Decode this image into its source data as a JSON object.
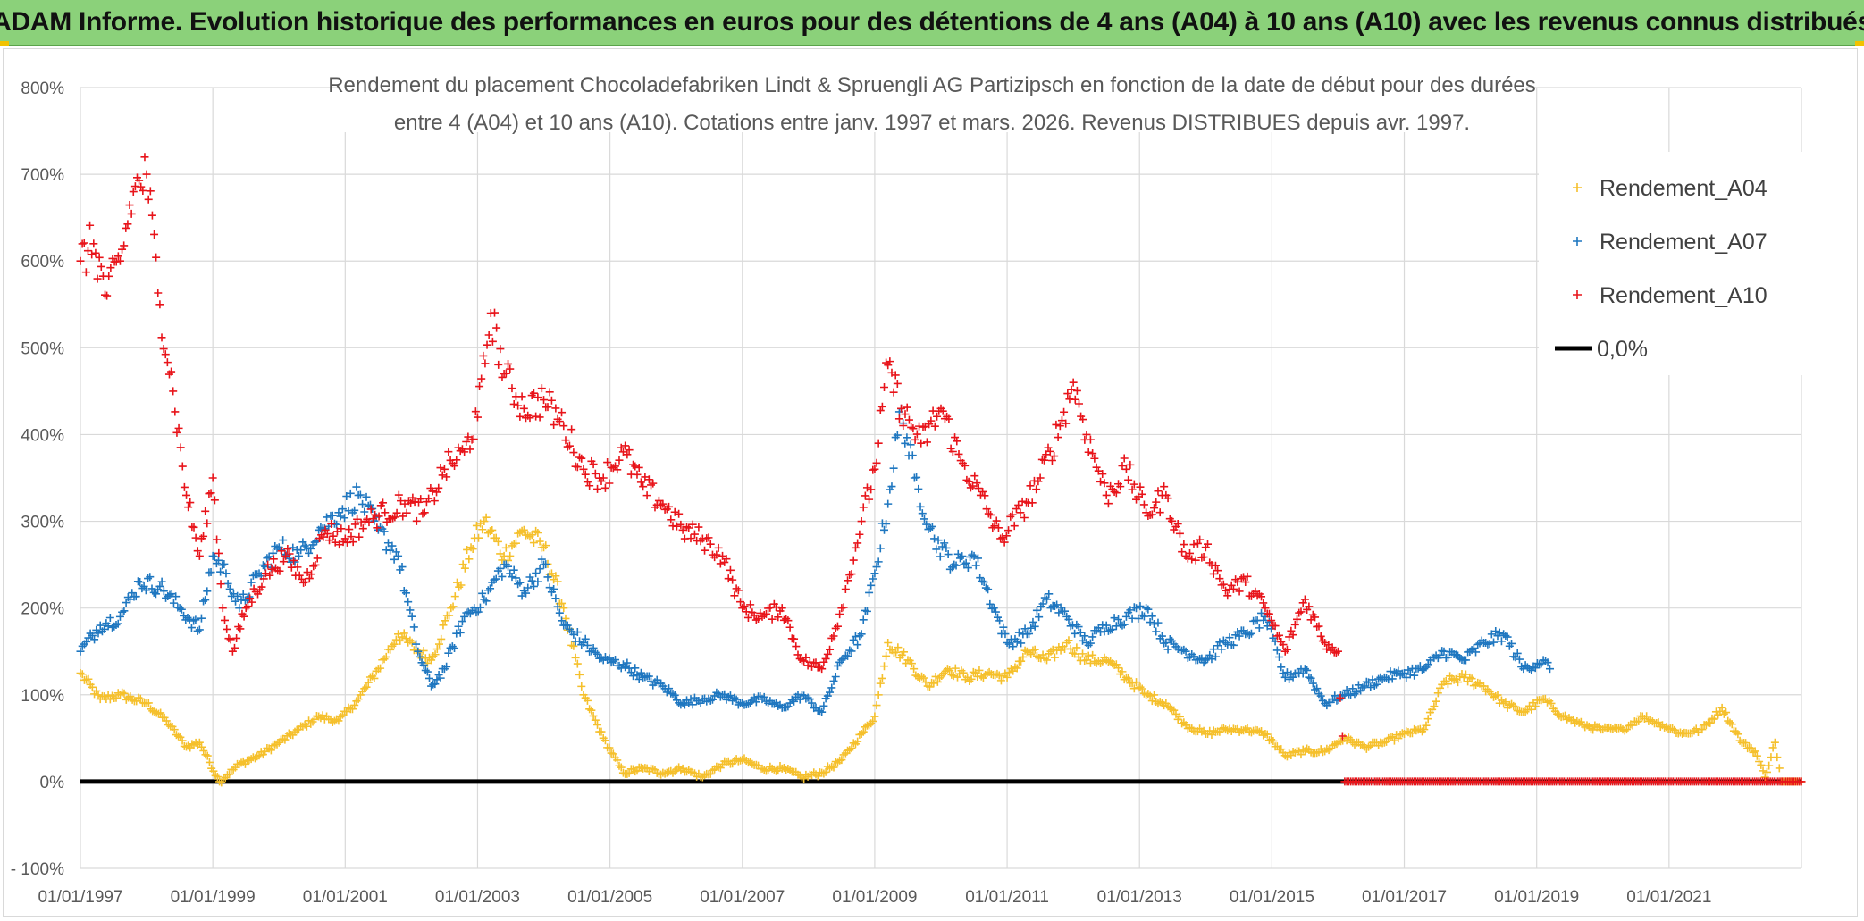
{
  "header": {
    "banner": "ADAM Informe. Evolution historique des performances en euros pour des détentions de 4 ans (A04) à 10 ans (A10) avec les revenus connus distribués"
  },
  "chart_data": {
    "type": "scatter",
    "title_line1": "Rendement du placement Chocoladefabriken Lindt & Spruengli AG Partizipsch en fonction de la date de début pour des durées",
    "title_line2": "entre 4 (A04) et 10 ans (A10). Cotations entre janv. 1997 et mars. 2026. Revenus DISTRIBUES depuis avr. 1997.",
    "xlabel": "",
    "ylabel": "",
    "xlim": [
      1997.0,
      2023.0
    ],
    "ylim": [
      -100,
      800
    ],
    "y_ticks": [
      -100,
      0,
      100,
      200,
      300,
      400,
      500,
      600,
      700,
      800
    ],
    "y_tick_labels": [
      "- 100%",
      "0%",
      "100%",
      "200%",
      "300%",
      "400%",
      "500%",
      "600%",
      "700%",
      "800%"
    ],
    "x_ticks": [
      1997,
      1999,
      2001,
      2003,
      2005,
      2007,
      2009,
      2011,
      2013,
      2015,
      2017,
      2019,
      2021
    ],
    "x_tick_labels": [
      "01/01/1997",
      "01/01/1999",
      "01/01/2001",
      "01/01/2003",
      "01/01/2005",
      "01/01/2007",
      "01/01/2009",
      "01/01/2011",
      "01/01/2013",
      "01/01/2015",
      "01/01/2017",
      "01/01/2019",
      "01/01/2021"
    ],
    "grid": true,
    "legend_position": "top-right",
    "series": [
      {
        "name": "Rendement_A04",
        "color": "#f5c02c",
        "marker": "+",
        "points": [
          [
            1997.0,
            125
          ],
          [
            1997.3,
            95
          ],
          [
            1997.6,
            100
          ],
          [
            1998.0,
            90
          ],
          [
            1998.3,
            70
          ],
          [
            1998.6,
            40
          ],
          [
            1998.8,
            45
          ],
          [
            1999.1,
            0
          ],
          [
            1999.4,
            20
          ],
          [
            1999.7,
            30
          ],
          [
            2000.0,
            45
          ],
          [
            2000.3,
            60
          ],
          [
            2000.6,
            75
          ],
          [
            2000.9,
            70
          ],
          [
            2001.2,
            95
          ],
          [
            2001.5,
            130
          ],
          [
            2001.8,
            170
          ],
          [
            2002.1,
            150
          ],
          [
            2002.3,
            140
          ],
          [
            2002.6,
            200
          ],
          [
            2002.9,
            270
          ],
          [
            2003.1,
            300
          ],
          [
            2003.4,
            260
          ],
          [
            2003.7,
            290
          ],
          [
            2004.0,
            270
          ],
          [
            2004.3,
            200
          ],
          [
            2004.6,
            100
          ],
          [
            2004.9,
            50
          ],
          [
            2005.2,
            10
          ],
          [
            2005.5,
            15
          ],
          [
            2005.8,
            10
          ],
          [
            2006.1,
            15
          ],
          [
            2006.4,
            5
          ],
          [
            2006.7,
            20
          ],
          [
            2007.0,
            25
          ],
          [
            2007.3,
            15
          ],
          [
            2007.6,
            15
          ],
          [
            2007.9,
            5
          ],
          [
            2008.2,
            10
          ],
          [
            2008.5,
            25
          ],
          [
            2008.8,
            55
          ],
          [
            2009.0,
            75
          ],
          [
            2009.2,
            160
          ],
          [
            2009.5,
            140
          ],
          [
            2009.8,
            110
          ],
          [
            2010.1,
            130
          ],
          [
            2010.4,
            120
          ],
          [
            2010.7,
            125
          ],
          [
            2011.0,
            120
          ],
          [
            2011.3,
            150
          ],
          [
            2011.6,
            140
          ],
          [
            2011.9,
            160
          ],
          [
            2012.2,
            140
          ],
          [
            2012.5,
            140
          ],
          [
            2012.8,
            120
          ],
          [
            2013.1,
            100
          ],
          [
            2013.4,
            90
          ],
          [
            2013.7,
            65
          ],
          [
            2014.0,
            55
          ],
          [
            2014.3,
            60
          ],
          [
            2014.6,
            60
          ],
          [
            2014.9,
            55
          ],
          [
            2015.2,
            30
          ],
          [
            2015.5,
            35
          ],
          [
            2015.8,
            35
          ],
          [
            2016.1,
            50
          ],
          [
            2016.4,
            40
          ],
          [
            2016.7,
            45
          ],
          [
            2017.0,
            55
          ],
          [
            2017.3,
            60
          ],
          [
            2017.6,
            115
          ],
          [
            2017.9,
            120
          ],
          [
            2018.2,
            110
          ],
          [
            2018.5,
            90
          ],
          [
            2018.8,
            80
          ],
          [
            2019.1,
            95
          ],
          [
            2019.4,
            75
          ],
          [
            2019.7,
            65
          ],
          [
            2020.0,
            60
          ],
          [
            2020.3,
            60
          ],
          [
            2020.6,
            75
          ],
          [
            2020.9,
            65
          ],
          [
            2021.2,
            55
          ],
          [
            2021.5,
            60
          ],
          [
            2021.8,
            85
          ],
          [
            2022.1,
            45
          ],
          [
            2022.3,
            35
          ],
          [
            2022.45,
            5
          ],
          [
            2022.6,
            45
          ],
          [
            2022.7,
            0
          ],
          [
            2022.9,
            0
          ],
          [
            2023.0,
            0
          ]
        ]
      },
      {
        "name": "Rendement_A07",
        "color": "#1f77c0",
        "marker": "+",
        "points": [
          [
            1997.0,
            150
          ],
          [
            1997.3,
            180
          ],
          [
            1997.6,
            190
          ],
          [
            1997.9,
            230
          ],
          [
            1998.2,
            225
          ],
          [
            1998.5,
            200
          ],
          [
            1998.8,
            175
          ],
          [
            1999.0,
            260
          ],
          [
            1999.2,
            240
          ],
          [
            1999.4,
            200
          ],
          [
            1999.7,
            240
          ],
          [
            2000.0,
            270
          ],
          [
            2000.3,
            260
          ],
          [
            2000.6,
            290
          ],
          [
            2000.9,
            310
          ],
          [
            2001.2,
            330
          ],
          [
            2001.5,
            290
          ],
          [
            2001.8,
            260
          ],
          [
            2002.1,
            150
          ],
          [
            2002.3,
            110
          ],
          [
            2002.5,
            130
          ],
          [
            2002.8,
            190
          ],
          [
            2003.1,
            210
          ],
          [
            2003.4,
            250
          ],
          [
            2003.7,
            220
          ],
          [
            2004.0,
            250
          ],
          [
            2004.3,
            180
          ],
          [
            2004.6,
            160
          ],
          [
            2004.9,
            140
          ],
          [
            2005.2,
            135
          ],
          [
            2005.5,
            120
          ],
          [
            2005.8,
            110
          ],
          [
            2006.1,
            90
          ],
          [
            2006.4,
            95
          ],
          [
            2006.7,
            100
          ],
          [
            2007.0,
            90
          ],
          [
            2007.3,
            95
          ],
          [
            2007.6,
            85
          ],
          [
            2007.9,
            100
          ],
          [
            2008.2,
            80
          ],
          [
            2008.5,
            140
          ],
          [
            2008.8,
            170
          ],
          [
            2009.0,
            240
          ],
          [
            2009.2,
            320
          ],
          [
            2009.4,
            430
          ],
          [
            2009.6,
            350
          ],
          [
            2009.9,
            280
          ],
          [
            2010.2,
            250
          ],
          [
            2010.5,
            260
          ],
          [
            2010.8,
            200
          ],
          [
            2011.0,
            160
          ],
          [
            2011.3,
            170
          ],
          [
            2011.6,
            210
          ],
          [
            2011.9,
            190
          ],
          [
            2012.2,
            160
          ],
          [
            2012.5,
            180
          ],
          [
            2012.8,
            190
          ],
          [
            2013.1,
            200
          ],
          [
            2013.4,
            160
          ],
          [
            2013.7,
            150
          ],
          [
            2014.0,
            140
          ],
          [
            2014.3,
            160
          ],
          [
            2014.6,
            170
          ],
          [
            2014.9,
            190
          ],
          [
            2015.2,
            120
          ],
          [
            2015.5,
            130
          ],
          [
            2015.8,
            90
          ],
          [
            2016.1,
            100
          ],
          [
            2016.4,
            110
          ],
          [
            2016.7,
            120
          ],
          [
            2017.0,
            125
          ],
          [
            2017.3,
            130
          ],
          [
            2017.6,
            150
          ],
          [
            2017.9,
            140
          ],
          [
            2018.2,
            160
          ],
          [
            2018.5,
            170
          ],
          [
            2018.8,
            130
          ],
          [
            2019.1,
            140
          ],
          [
            2019.2,
            130
          ]
        ]
      },
      {
        "name": "Rendement_A10",
        "color": "#e8141a",
        "marker": "+",
        "points": [
          [
            1997.0,
            600
          ],
          [
            1997.2,
            620
          ],
          [
            1997.4,
            560
          ],
          [
            1997.6,
            600
          ],
          [
            1997.8,
            680
          ],
          [
            1998.0,
            700
          ],
          [
            1998.2,
            550
          ],
          [
            1998.4,
            450
          ],
          [
            1998.6,
            330
          ],
          [
            1998.8,
            260
          ],
          [
            1999.0,
            350
          ],
          [
            1999.15,
            200
          ],
          [
            1999.3,
            150
          ],
          [
            1999.5,
            200
          ],
          [
            1999.8,
            240
          ],
          [
            2000.1,
            260
          ],
          [
            2000.4,
            230
          ],
          [
            2000.7,
            290
          ],
          [
            2001.0,
            280
          ],
          [
            2001.3,
            300
          ],
          [
            2001.6,
            310
          ],
          [
            2001.9,
            320
          ],
          [
            2002.2,
            310
          ],
          [
            2002.5,
            360
          ],
          [
            2002.8,
            380
          ],
          [
            2003.0,
            420
          ],
          [
            2003.2,
            540
          ],
          [
            2003.4,
            470
          ],
          [
            2003.7,
            430
          ],
          [
            2004.0,
            440
          ],
          [
            2004.3,
            410
          ],
          [
            2004.6,
            360
          ],
          [
            2004.9,
            350
          ],
          [
            2005.2,
            380
          ],
          [
            2005.5,
            340
          ],
          [
            2005.8,
            320
          ],
          [
            2006.1,
            290
          ],
          [
            2006.4,
            280
          ],
          [
            2006.7,
            260
          ],
          [
            2007.0,
            200
          ],
          [
            2007.3,
            190
          ],
          [
            2007.6,
            200
          ],
          [
            2007.9,
            140
          ],
          [
            2008.2,
            130
          ],
          [
            2008.5,
            200
          ],
          [
            2008.8,
            300
          ],
          [
            2009.0,
            360
          ],
          [
            2009.2,
            480
          ],
          [
            2009.4,
            430
          ],
          [
            2009.7,
            390
          ],
          [
            2010.0,
            430
          ],
          [
            2010.3,
            370
          ],
          [
            2010.6,
            330
          ],
          [
            2010.9,
            280
          ],
          [
            2011.2,
            310
          ],
          [
            2011.5,
            350
          ],
          [
            2011.8,
            410
          ],
          [
            2012.0,
            460
          ],
          [
            2012.2,
            400
          ],
          [
            2012.5,
            330
          ],
          [
            2012.8,
            360
          ],
          [
            2013.1,
            310
          ],
          [
            2013.4,
            330
          ],
          [
            2013.7,
            260
          ],
          [
            2014.0,
            270
          ],
          [
            2014.3,
            220
          ],
          [
            2014.6,
            230
          ],
          [
            2014.9,
            200
          ],
          [
            2015.2,
            150
          ],
          [
            2015.5,
            210
          ],
          [
            2015.8,
            160
          ],
          [
            2016.0,
            150
          ],
          [
            2016.1,
            0
          ],
          [
            2016.5,
            0
          ],
          [
            2017.0,
            0
          ],
          [
            2017.5,
            0
          ],
          [
            2018.0,
            0
          ],
          [
            2018.5,
            0
          ],
          [
            2019.0,
            0
          ],
          [
            2019.5,
            0
          ],
          [
            2020.0,
            0
          ],
          [
            2020.5,
            0
          ],
          [
            2021.0,
            0
          ],
          [
            2021.5,
            0
          ],
          [
            2022.0,
            0
          ],
          [
            2022.5,
            0
          ],
          [
            2023.0,
            0
          ]
        ]
      },
      {
        "name": "0,0%",
        "color": "#000000",
        "marker": "line",
        "x": [
          1997.0,
          2023.0
        ],
        "values": [
          0,
          0
        ]
      }
    ]
  }
}
